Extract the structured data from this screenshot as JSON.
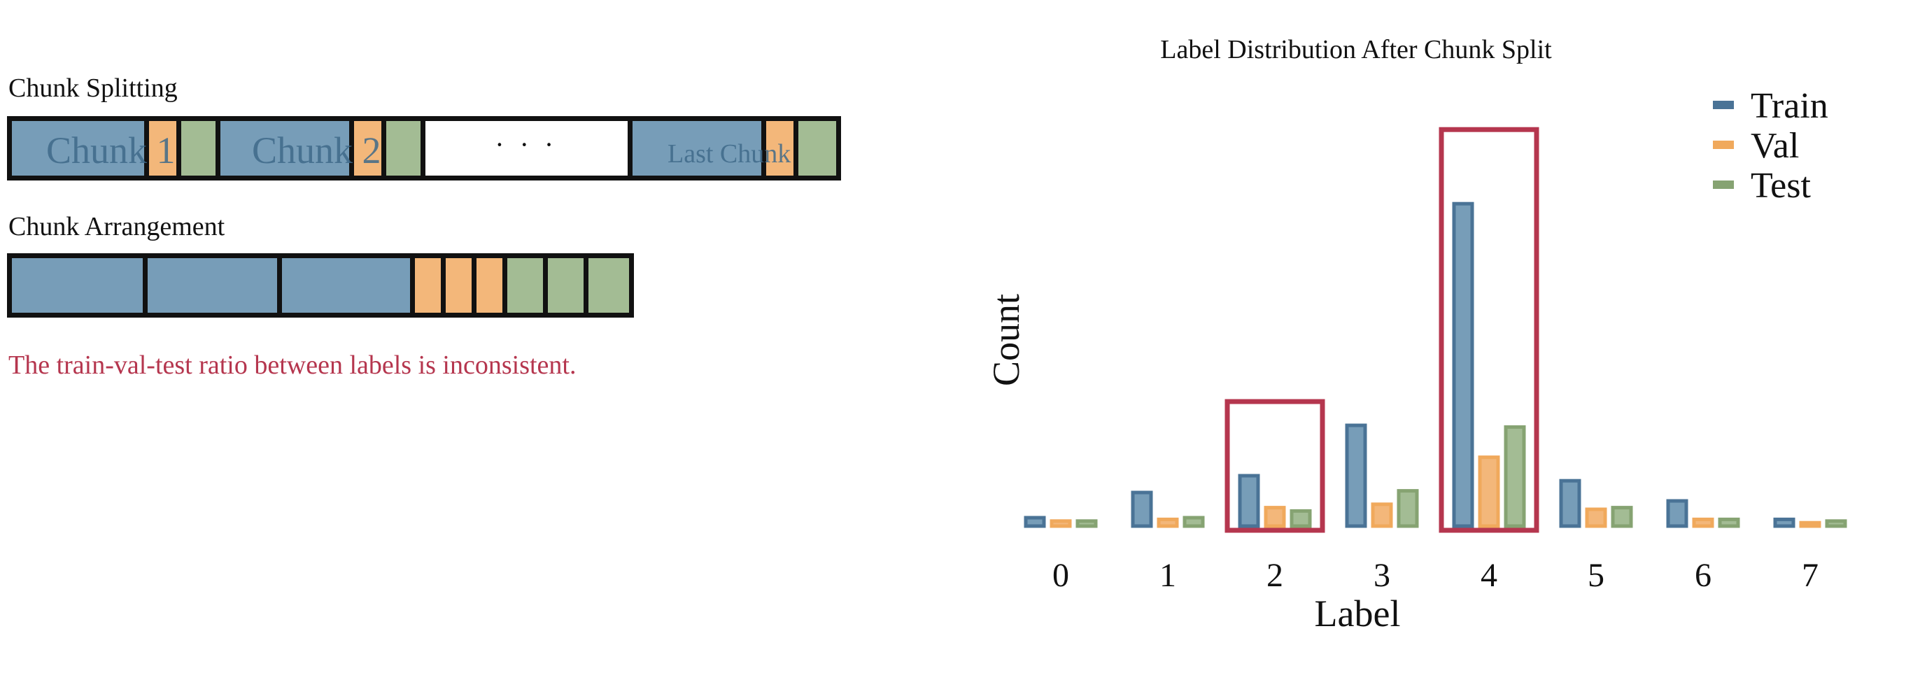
{
  "left_panel": {
    "splitting_label": "Chunk Splitting",
    "arrangement_label": "Chunk Arrangement",
    "chunks": {
      "chunk1": "Chunk 1",
      "chunk2": "Chunk 2",
      "dots": "· · ·",
      "last": "Last Chunk"
    },
    "warning": "The train-val-test ratio between labels is inconsistent."
  },
  "colors": {
    "train": "#4a7396",
    "val": "#f0a95c",
    "test": "#86a372",
    "highlight": "#b5364e"
  },
  "chart_data": {
    "type": "bar",
    "title": "Label Distribution After Chunk Split",
    "xlabel": "Label",
    "ylabel": "Count",
    "categories": [
      "0",
      "1",
      "2",
      "3",
      "4",
      "5",
      "6",
      "7"
    ],
    "series": [
      {
        "name": "Train",
        "values": [
          2.5,
          10,
          15,
          30,
          96,
          13.5,
          7.5,
          2
        ]
      },
      {
        "name": "Val",
        "values": [
          1.5,
          2,
          5.5,
          6.5,
          20.5,
          5,
          2,
          1
        ]
      },
      {
        "name": "Test",
        "values": [
          1.5,
          2.5,
          4.5,
          10.5,
          29.5,
          5.5,
          2,
          1.5
        ]
      }
    ],
    "ylim": [
      0,
      100
    ],
    "legend": "top-right",
    "grid": false,
    "highlighted_categories": [
      "2",
      "4"
    ]
  }
}
